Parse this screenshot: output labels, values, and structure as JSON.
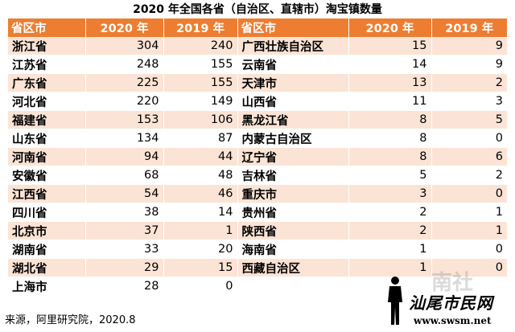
{
  "title": "2020 年全国各省（自治区、直辖市）淘宝镇数量",
  "headers": [
    "省区市",
    "2020 年",
    "2019 年",
    "省区市",
    "2020 年",
    "2019 年"
  ],
  "left_rows": [
    {
      "name": "浙江省",
      "y2020": "304",
      "y2019": "240"
    },
    {
      "name": "江苏省",
      "y2020": "248",
      "y2019": "155"
    },
    {
      "name": "广东省",
      "y2020": "225",
      "y2019": "155"
    },
    {
      "name": "河北省",
      "y2020": "220",
      "y2019": "149"
    },
    {
      "name": "福建省",
      "y2020": "153",
      "y2019": "106"
    },
    {
      "name": "山东省",
      "y2020": "134",
      "y2019": "87"
    },
    {
      "name": "河南省",
      "y2020": "94",
      "y2019": "44"
    },
    {
      "name": "安徽省",
      "y2020": "68",
      "y2019": "48"
    },
    {
      "name": "江西省",
      "y2020": "54",
      "y2019": "46"
    },
    {
      "name": "四川省",
      "y2020": "38",
      "y2019": "14"
    },
    {
      "name": "北京市",
      "y2020": "37",
      "y2019": "1"
    },
    {
      "name": "湖南省",
      "y2020": "33",
      "y2019": "20"
    },
    {
      "name": "湖北省",
      "y2020": "29",
      "y2019": "15"
    },
    {
      "name": "上海市",
      "y2020": "28",
      "y2019": "0"
    }
  ],
  "right_rows": [
    {
      "name": "广西壮族自治区",
      "y2020": "15",
      "y2019": "9"
    },
    {
      "name": "云南省",
      "y2020": "14",
      "y2019": "9"
    },
    {
      "name": "天津市",
      "y2020": "13",
      "y2019": "2"
    },
    {
      "name": "山西省",
      "y2020": "11",
      "y2019": "3"
    },
    {
      "name": "黑龙江省",
      "y2020": "8",
      "y2019": "5"
    },
    {
      "name": "内蒙古自治区",
      "y2020": "8",
      "y2019": "0"
    },
    {
      "name": "辽宁省",
      "y2020": "8",
      "y2019": "6"
    },
    {
      "name": "吉林省",
      "y2020": "5",
      "y2019": "2"
    },
    {
      "name": "重庆市",
      "y2020": "3",
      "y2019": "0"
    },
    {
      "name": "贵州省",
      "y2020": "2",
      "y2019": "1"
    },
    {
      "name": "陕西省",
      "y2020": "2",
      "y2019": "1"
    },
    {
      "name": "海南省",
      "y2020": "1",
      "y2019": "0"
    },
    {
      "name": "西藏自治区",
      "y2020": "1",
      "y2019": "0"
    }
  ],
  "source": "来源，阿里研究院，2020.8",
  "watermark": {
    "logo_text": "汕尾市民网",
    "url": "www.swsm.net",
    "ghost_text": "南社"
  },
  "colors": {
    "header_bg": "#ed7d31",
    "stripe": "#fbe4d5"
  }
}
